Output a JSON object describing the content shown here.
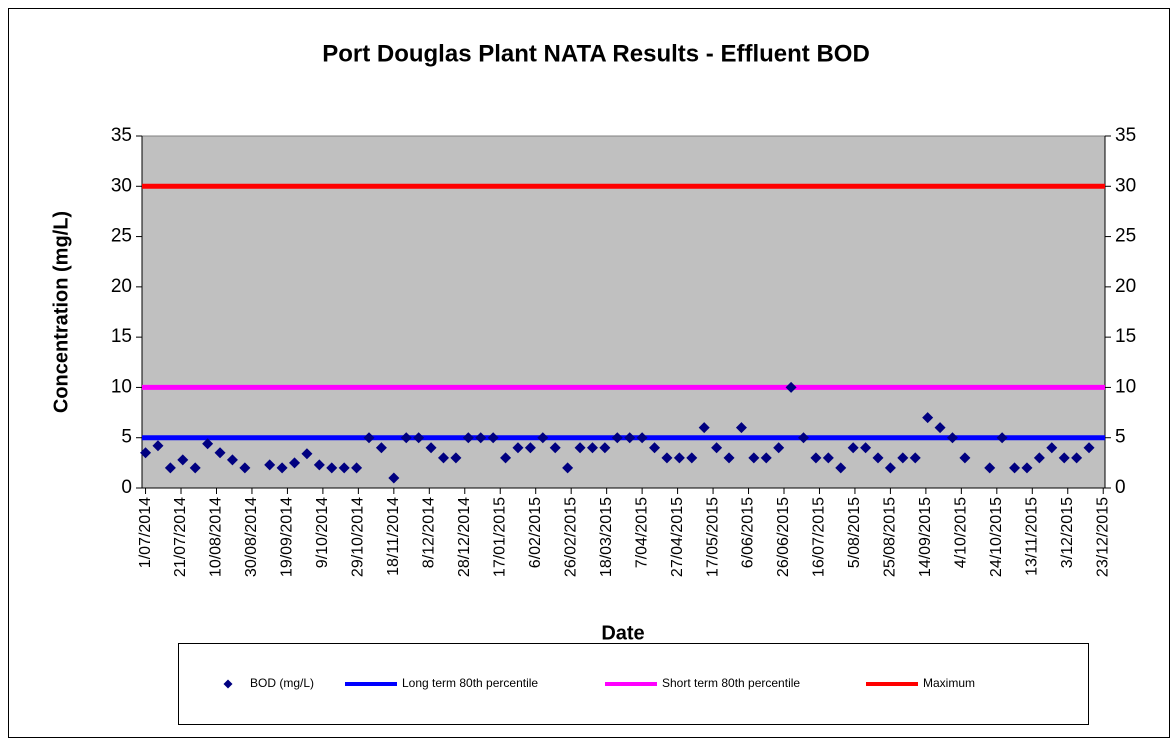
{
  "chart_data": {
    "type": "scatter",
    "title": "Port Douglas Plant NATA Results - Effluent BOD",
    "x_label": "Date",
    "y_label": "Concentration (mg/L)",
    "xlim": [
      "2014-06-29",
      "2015-12-24"
    ],
    "xticks": [
      {
        "value": "2014-07-01",
        "label": "1/07/2014"
      },
      {
        "value": "2014-07-21",
        "label": "21/07/2014"
      },
      {
        "value": "2014-08-10",
        "label": "10/08/2014"
      },
      {
        "value": "2014-08-30",
        "label": "30/08/2014"
      },
      {
        "value": "2014-09-19",
        "label": "19/09/2014"
      },
      {
        "value": "2014-10-09",
        "label": "9/10/2014"
      },
      {
        "value": "2014-10-29",
        "label": "29/10/2014"
      },
      {
        "value": "2014-11-18",
        "label": "18/11/2014"
      },
      {
        "value": "2014-12-08",
        "label": "8/12/2014"
      },
      {
        "value": "2014-12-28",
        "label": "28/12/2014"
      },
      {
        "value": "2015-01-17",
        "label": "17/01/2015"
      },
      {
        "value": "2015-02-06",
        "label": "6/02/2015"
      },
      {
        "value": "2015-02-26",
        "label": "26/02/2015"
      },
      {
        "value": "2015-03-18",
        "label": "18/03/2015"
      },
      {
        "value": "2015-04-07",
        "label": "7/04/2015"
      },
      {
        "value": "2015-04-27",
        "label": "27/04/2015"
      },
      {
        "value": "2015-05-17",
        "label": "17/05/2015"
      },
      {
        "value": "2015-06-06",
        "label": "6/06/2015"
      },
      {
        "value": "2015-06-26",
        "label": "26/06/2015"
      },
      {
        "value": "2015-07-16",
        "label": "16/07/2015"
      },
      {
        "value": "2015-08-05",
        "label": "5/08/2015"
      },
      {
        "value": "2015-08-25",
        "label": "25/08/2015"
      },
      {
        "value": "2015-09-14",
        "label": "14/09/2015"
      },
      {
        "value": "2015-10-04",
        "label": "4/10/2015"
      },
      {
        "value": "2015-10-24",
        "label": "24/10/2015"
      },
      {
        "value": "2015-11-13",
        "label": "13/11/2015"
      },
      {
        "value": "2015-12-03",
        "label": "3/12/2015"
      },
      {
        "value": "2015-12-23",
        "label": "23/12/2015"
      }
    ],
    "ylim": [
      0,
      35
    ],
    "yticks": [
      0,
      5,
      10,
      15,
      20,
      25,
      30,
      35
    ],
    "y2lim": [
      0,
      35
    ],
    "y2ticks": [
      0,
      5,
      10,
      15,
      20,
      25,
      30,
      35
    ],
    "series": [
      {
        "name": "BOD (mg/L)",
        "type": "scatter",
        "color": "#000080",
        "x": [
          "2014-07-01",
          "2014-07-08",
          "2014-07-15",
          "2014-07-22",
          "2014-07-29",
          "2014-08-05",
          "2014-08-12",
          "2014-08-19",
          "2014-08-26",
          "2014-09-09",
          "2014-09-16",
          "2014-09-23",
          "2014-09-30",
          "2014-10-07",
          "2014-10-14",
          "2014-10-21",
          "2014-10-28",
          "2014-11-04",
          "2014-11-11",
          "2014-11-18",
          "2014-11-25",
          "2014-12-02",
          "2014-12-09",
          "2014-12-16",
          "2014-12-23",
          "2014-12-30",
          "2015-01-06",
          "2015-01-13",
          "2015-01-20",
          "2015-01-27",
          "2015-02-03",
          "2015-02-10",
          "2015-02-17",
          "2015-02-24",
          "2015-03-03",
          "2015-03-10",
          "2015-03-17",
          "2015-03-24",
          "2015-03-31",
          "2015-04-07",
          "2015-04-14",
          "2015-04-21",
          "2015-04-28",
          "2015-05-05",
          "2015-05-12",
          "2015-05-19",
          "2015-05-26",
          "2015-06-02",
          "2015-06-09",
          "2015-06-16",
          "2015-06-23",
          "2015-06-30",
          "2015-07-07",
          "2015-07-14",
          "2015-07-21",
          "2015-07-28",
          "2015-08-04",
          "2015-08-11",
          "2015-08-18",
          "2015-08-25",
          "2015-09-01",
          "2015-09-08",
          "2015-09-15",
          "2015-09-22",
          "2015-09-29",
          "2015-10-06",
          "2015-10-20",
          "2015-10-27",
          "2015-11-03",
          "2015-11-10",
          "2015-11-17",
          "2015-11-24",
          "2015-12-01",
          "2015-12-08",
          "2015-12-15"
        ],
        "values": [
          3.5,
          4.2,
          2,
          2.8,
          2,
          4.4,
          3.5,
          2.8,
          2,
          2.3,
          2,
          2.5,
          3.4,
          2.3,
          2,
          2,
          2,
          5,
          4,
          1,
          5,
          5,
          4,
          3,
          3,
          5,
          5,
          5,
          3,
          4,
          4,
          5,
          4,
          2,
          4,
          4,
          4,
          5,
          5,
          5,
          4,
          3,
          3,
          3,
          6,
          4,
          3,
          6,
          3,
          3,
          4,
          10,
          5,
          3,
          3,
          2,
          4,
          4,
          3,
          2,
          3,
          3,
          7,
          6,
          5,
          3,
          2,
          5,
          2,
          2,
          3,
          4,
          3,
          3,
          4
        ]
      },
      {
        "name": "Long term 80th percentile",
        "type": "line",
        "color": "#0000ff",
        "x": [
          "2014-06-29",
          "2015-12-24"
        ],
        "values": [
          5,
          5
        ]
      },
      {
        "name": "Short term 80th percentile",
        "type": "line",
        "color": "#ff00ff",
        "x": [
          "2014-06-29",
          "2015-12-24"
        ],
        "values": [
          10,
          10
        ]
      },
      {
        "name": "Maximum",
        "type": "line",
        "color": "#ff0000",
        "x": [
          "2014-06-29",
          "2015-12-24"
        ],
        "values": [
          30,
          30
        ]
      }
    ]
  }
}
